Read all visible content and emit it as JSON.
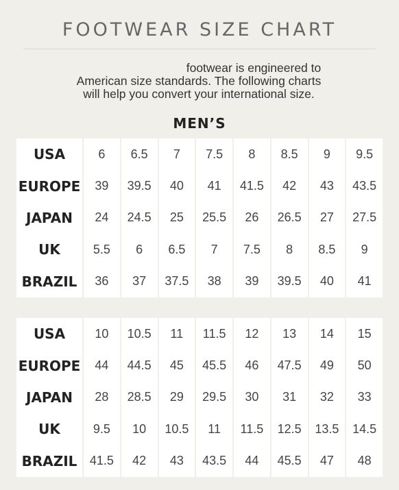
{
  "title": "FOOTWEAR SIZE CHART",
  "intro": {
    "line1": "footwear is engineered to",
    "line2": "American size standards. The following charts",
    "line3": "will help you convert your international size."
  },
  "section_title": "MEN’S",
  "tables": [
    {
      "rows": [
        {
          "label": "USA",
          "values": [
            "6",
            "6.5",
            "7",
            "7.5",
            "8",
            "8.5",
            "9",
            "9.5"
          ]
        },
        {
          "label": "EUROPE",
          "values": [
            "39",
            "39.5",
            "40",
            "41",
            "41.5",
            "42",
            "43",
            "43.5"
          ]
        },
        {
          "label": "JAPAN",
          "values": [
            "24",
            "24.5",
            "25",
            "25.5",
            "26",
            "26.5",
            "27",
            "27.5"
          ]
        },
        {
          "label": "UK",
          "values": [
            "5.5",
            "6",
            "6.5",
            "7",
            "7.5",
            "8",
            "8.5",
            "9"
          ]
        },
        {
          "label": "BRAZIL",
          "values": [
            "36",
            "37",
            "37.5",
            "38",
            "39",
            "39.5",
            "40",
            "41"
          ]
        }
      ]
    },
    {
      "rows": [
        {
          "label": "USA",
          "values": [
            "10",
            "10.5",
            "11",
            "11.5",
            "12",
            "13",
            "14",
            "15"
          ]
        },
        {
          "label": "EUROPE",
          "values": [
            "44",
            "44.5",
            "45",
            "45.5",
            "46",
            "47.5",
            "49",
            "50"
          ]
        },
        {
          "label": "JAPAN",
          "values": [
            "28",
            "28.5",
            "29",
            "29.5",
            "30",
            "31",
            "32",
            "33"
          ]
        },
        {
          "label": "UK",
          "values": [
            "9.5",
            "10",
            "10.5",
            "11",
            "11.5",
            "12.5",
            "13.5",
            "14.5"
          ]
        },
        {
          "label": "BRAZIL",
          "values": [
            "41.5",
            "42",
            "43",
            "43.5",
            "44",
            "45.5",
            "47",
            "48"
          ]
        }
      ]
    }
  ]
}
